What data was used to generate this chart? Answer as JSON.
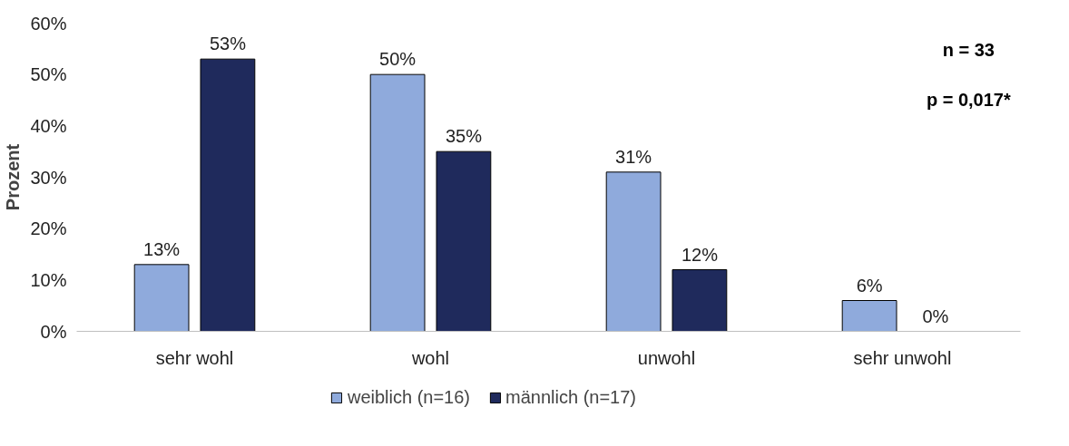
{
  "chart_data": {
    "type": "bar",
    "ylabel": "Prozent",
    "categories": [
      "sehr wohl",
      "wohl",
      "unwohl",
      "sehr unwohl"
    ],
    "series": [
      {
        "name": "weiblich (n=16)",
        "color": "#8faadc",
        "values": [
          13,
          50,
          31,
          6
        ],
        "value_labels": [
          "13%",
          "50%",
          "31%",
          "6%"
        ]
      },
      {
        "name": "männlich (n=17)",
        "color": "#1f2a5c",
        "values": [
          53,
          35,
          12,
          0
        ],
        "value_labels": [
          "53%",
          "35%",
          "12%",
          "0%"
        ]
      }
    ],
    "ylim": [
      0,
      60
    ],
    "yticks": [
      {
        "value": 0,
        "label": "0%"
      },
      {
        "value": 10,
        "label": "10%"
      },
      {
        "value": 20,
        "label": "20%"
      },
      {
        "value": 30,
        "label": "30%"
      },
      {
        "value": 40,
        "label": "40%"
      },
      {
        "value": 50,
        "label": "50%"
      },
      {
        "value": 60,
        "label": "60%"
      }
    ],
    "annotations": [
      "n = 33",
      "p = 0,017*"
    ],
    "grid": false,
    "legend": "bottom"
  }
}
